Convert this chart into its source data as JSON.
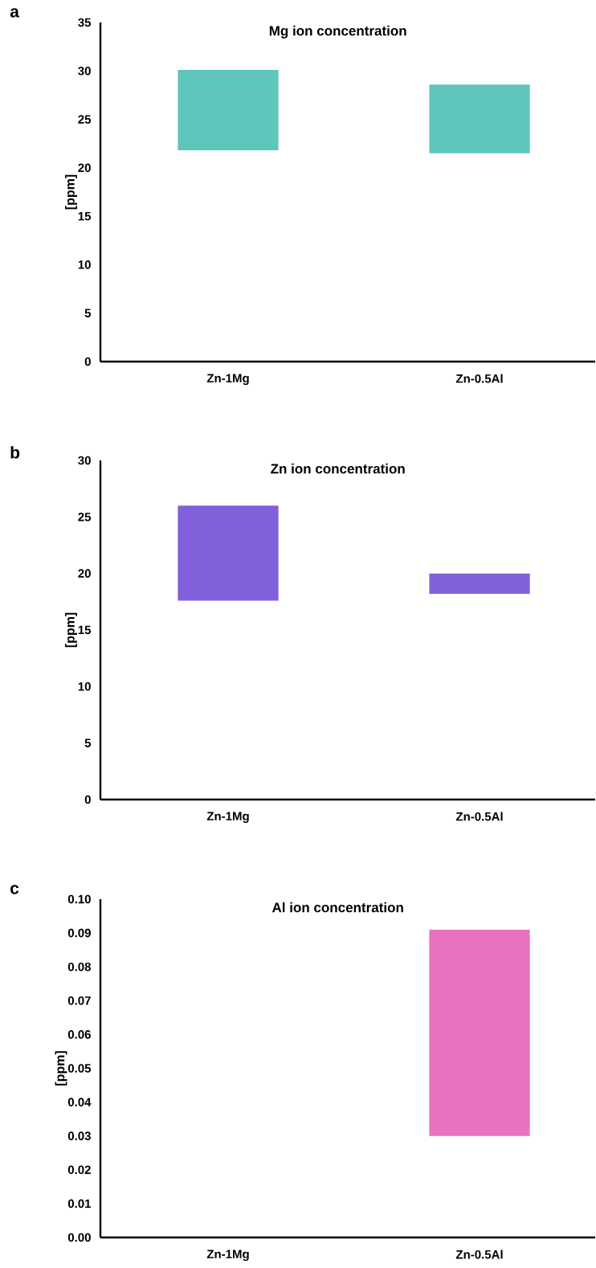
{
  "chart_data": [
    {
      "type": "bar",
      "title": "Mg ion concentration",
      "ylabel": "[ppm]",
      "annotations": [
        "a"
      ],
      "categories": [
        "Zn-1Mg",
        "Zn-0.5Al"
      ],
      "base": [
        21.8,
        21.5
      ],
      "values": [
        8.3,
        7.1
      ],
      "color": "#5ec6bb",
      "ylim": [
        0,
        35
      ],
      "yticks": [
        0,
        5,
        10,
        15,
        20,
        25,
        30,
        35
      ]
    },
    {
      "type": "bar",
      "title": "Zn ion concentration",
      "ylabel": "[ppm]",
      "annotations": [
        "b"
      ],
      "categories": [
        "Zn-1Mg",
        "Zn-0.5Al"
      ],
      "base": [
        17.6,
        18.2
      ],
      "values": [
        8.4,
        1.8
      ],
      "color": "#8360db",
      "ylim": [
        0,
        30
      ],
      "yticks": [
        0,
        5,
        10,
        15,
        20,
        25,
        30
      ]
    },
    {
      "type": "bar",
      "title": "Al ion concentration",
      "ylabel": "[ppm]",
      "annotations": [
        "c"
      ],
      "categories": [
        "Zn-1Mg",
        "Zn-0.5Al"
      ],
      "base": [
        null,
        0.03
      ],
      "values": [
        null,
        0.061
      ],
      "color": "#e872bf",
      "ylim": [
        0,
        0.1
      ],
      "yticks": [
        {
          "value": 0,
          "label": "0.00"
        },
        {
          "value": 0.01,
          "label": "0.01"
        },
        {
          "value": 0.02,
          "label": "0.02"
        },
        {
          "value": 0.03,
          "label": "0.03"
        },
        {
          "value": 0.04,
          "label": "0.04"
        },
        {
          "value": 0.05,
          "label": "0.05"
        },
        {
          "value": 0.06,
          "label": "0.06"
        },
        {
          "value": 0.07,
          "label": "0.07"
        },
        {
          "value": 0.08,
          "label": "0.08"
        },
        {
          "value": 0.09,
          "label": "0.09"
        },
        {
          "value": 0.1,
          "label": "0.10"
        }
      ]
    }
  ]
}
